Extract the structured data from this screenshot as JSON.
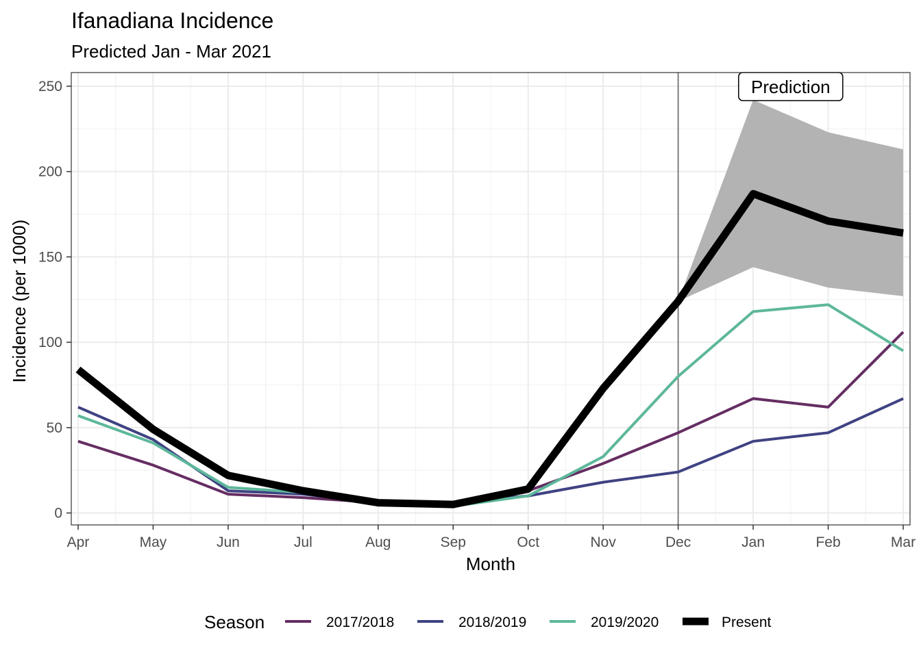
{
  "chart_data": {
    "type": "line",
    "title": "Ifanadiana Incidence",
    "subtitle": "Predicted Jan - Mar 2021",
    "xlabel": "Month",
    "ylabel": "Incidence (per 1000)",
    "categories": [
      "Apr",
      "May",
      "Jun",
      "Jul",
      "Aug",
      "Sep",
      "Oct",
      "Nov",
      "Dec",
      "Jan",
      "Feb",
      "Mar"
    ],
    "ylim": [
      -7,
      258
    ],
    "yticks": [
      0,
      50,
      100,
      150,
      200,
      250
    ],
    "grid": true,
    "series": [
      {
        "name": "2017/2018",
        "color": "#652d62",
        "values": [
          42,
          28,
          11,
          9,
          6,
          5,
          13,
          29,
          47,
          67,
          62,
          106
        ]
      },
      {
        "name": "2018/2019",
        "color": "#3f4282",
        "values": [
          62,
          43,
          13,
          11,
          6,
          6,
          10,
          18,
          24,
          42,
          47,
          67
        ]
      },
      {
        "name": "2019/2020",
        "color": "#5db79b",
        "values": [
          57,
          41,
          15,
          12,
          6,
          4,
          10,
          33,
          80,
          118,
          122,
          95
        ]
      },
      {
        "name": "Present",
        "color": "#000000",
        "values": [
          84,
          49,
          22,
          13,
          6,
          5,
          14,
          73,
          124,
          187,
          171,
          164
        ]
      }
    ],
    "prediction_band": {
      "categories": [
        "Dec",
        "Jan",
        "Feb",
        "Mar"
      ],
      "lower": [
        124,
        144,
        132,
        127
      ],
      "upper": [
        124,
        242,
        223,
        213
      ],
      "color": "#b3b3b3"
    },
    "vline": {
      "at": "Dec",
      "color": "#808080"
    },
    "annotation": {
      "text": "Prediction",
      "x": "Jan",
      "x_offset": 0.5,
      "y": 250
    },
    "legend": {
      "title": "Season",
      "position": "bottom"
    }
  }
}
